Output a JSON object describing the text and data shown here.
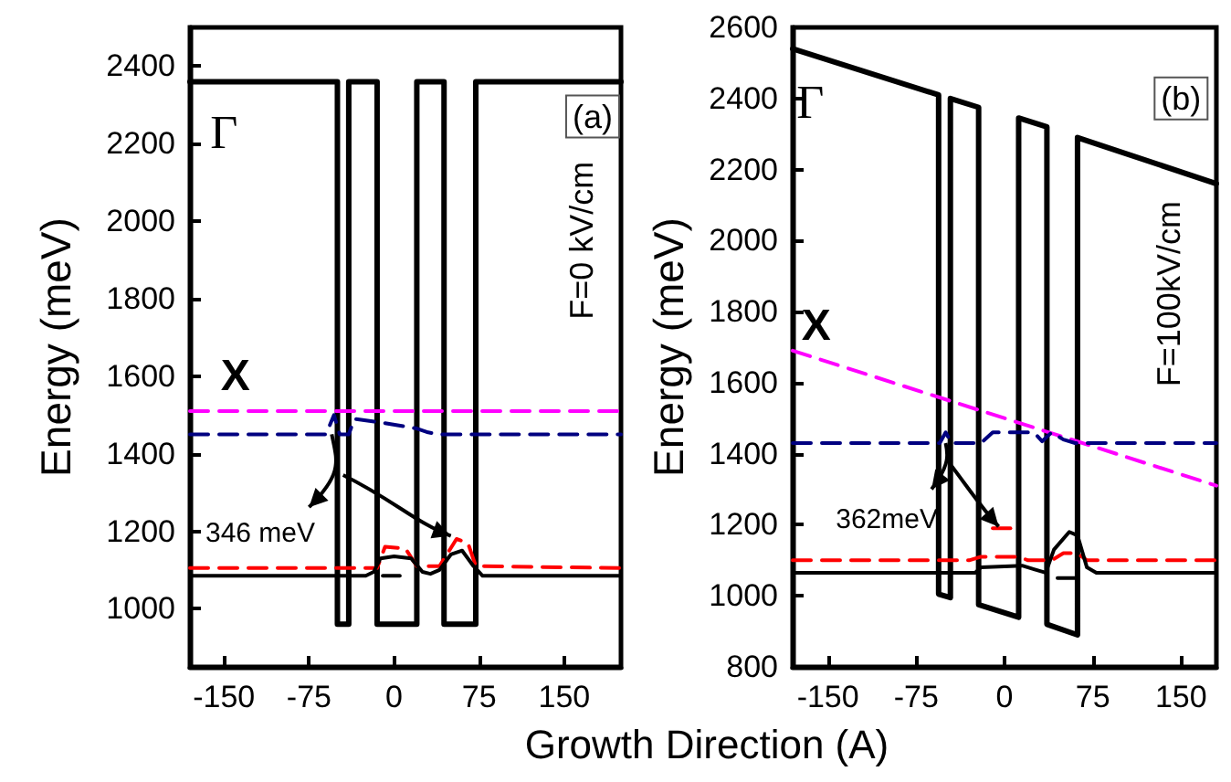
{
  "chart_data": [
    {
      "type": "line",
      "xlabel": "Growth Direction (A)",
      "ylabel": "Energy (meV)",
      "xlim": [
        -180,
        200
      ],
      "ylim": [
        850,
        2500
      ],
      "xticks": [
        -150,
        -75,
        0,
        75,
        150
      ],
      "yticks": [
        1000,
        1200,
        1400,
        1600,
        1800,
        2000,
        2200,
        2400
      ],
      "marker": "none",
      "annotations": [
        "Γ",
        "X",
        "(a)",
        "F=0 kV/cm",
        "346 meV"
      ],
      "series": [
        {
          "color": "#000000",
          "line_style": "solid",
          "x": [
            -180,
            -50,
            -50,
            -40,
            -40,
            -15,
            -15,
            20,
            20,
            44,
            44,
            72,
            72,
            200
          ],
          "values": [
            2360,
            2360,
            960,
            960,
            2360,
            2360,
            960,
            960,
            2360,
            2360,
            960,
            960,
            2360,
            2360
          ]
        },
        {
          "color": "#ff00ff",
          "line_style": "dashed",
          "x": [
            -180,
            200
          ],
          "values": [
            1510,
            1510
          ]
        },
        {
          "color": "#000080",
          "line_style": "dashed",
          "x": [
            -180,
            -60,
            -53,
            -48,
            -40,
            -35,
            -10,
            20,
            30,
            40,
            200
          ],
          "values": [
            1450,
            1450,
            1500,
            1450,
            1450,
            1490,
            1480,
            1465,
            1455,
            1450,
            1450
          ]
        },
        {
          "color": "#ff0000",
          "line_style": "dashed",
          "x": [
            -180,
            -15,
            -8,
            10,
            20,
            40,
            55,
            65,
            72,
            200
          ],
          "values": [
            1105,
            1105,
            1160,
            1155,
            1110,
            1110,
            1180,
            1170,
            1110,
            1105
          ]
        },
        {
          "color": "#000000",
          "line_style": "solid",
          "x": [
            -180,
            -25,
            -18,
            -12,
            0,
            15,
            25,
            32,
            40,
            50,
            60,
            70,
            78,
            200
          ],
          "values": [
            1085,
            1085,
            1095,
            1130,
            1135,
            1130,
            1095,
            1090,
            1100,
            1140,
            1150,
            1110,
            1085,
            1085
          ]
        },
        {
          "color": "#000000",
          "line_style": "solid",
          "x": [
            -10,
            5
          ],
          "values": [
            1085,
            1085
          ]
        }
      ]
    },
    {
      "type": "line",
      "ylabel": "Energy (meV)",
      "xlim": [
        -180,
        180
      ],
      "ylim": [
        800,
        2600
      ],
      "xticks": [
        -150,
        -75,
        0,
        75,
        150
      ],
      "yticks": [
        800,
        1000,
        1200,
        1400,
        1600,
        1800,
        2000,
        2200,
        2400,
        2600
      ],
      "marker": "none",
      "annotations": [
        "Γ",
        "X",
        "(b)",
        "F=100kV/cm",
        "362meV"
      ],
      "series": [
        {
          "color": "#000000",
          "line_style": "solid",
          "x": [
            -180,
            -56,
            -56,
            -46,
            -46,
            -22,
            -22,
            12,
            12,
            36,
            36,
            62,
            62,
            180
          ],
          "values": [
            2540,
            2410,
            1005,
            995,
            2400,
            2375,
            975,
            940,
            2345,
            2320,
            920,
            890,
            2290,
            2160
          ]
        },
        {
          "color": "#ff00ff",
          "line_style": "dashed",
          "x": [
            -180,
            180
          ],
          "values": [
            1690,
            1310
          ]
        },
        {
          "color": "#000080",
          "line_style": "dashed",
          "x": [
            -180,
            -55,
            -50,
            -45,
            -20,
            -10,
            25,
            32,
            40,
            50,
            60,
            180
          ],
          "values": [
            1430,
            1430,
            1460,
            1430,
            1430,
            1460,
            1460,
            1435,
            1460,
            1440,
            1430,
            1430
          ]
        },
        {
          "color": "#ff0000",
          "line_style": "dashed",
          "x": [
            -180,
            -30,
            -20,
            12,
            20,
            40,
            50,
            62,
            70,
            180
          ],
          "values": [
            1100,
            1100,
            1110,
            1110,
            1100,
            1100,
            1120,
            1120,
            1100,
            1100
          ]
        },
        {
          "color": "#ff0000",
          "line_style": "solid",
          "x": [
            -10,
            5
          ],
          "values": [
            1190,
            1190
          ]
        },
        {
          "color": "#000000",
          "line_style": "solid",
          "x": [
            -180,
            -25,
            -20,
            15,
            25,
            35,
            42,
            55,
            62,
            70,
            78,
            180
          ],
          "values": [
            1065,
            1065,
            1080,
            1085,
            1075,
            1065,
            1130,
            1180,
            1170,
            1080,
            1065,
            1065
          ]
        },
        {
          "color": "#000000",
          "line_style": "solid",
          "x": [
            45,
            60
          ],
          "values": [
            1050,
            1050
          ]
        }
      ]
    }
  ]
}
